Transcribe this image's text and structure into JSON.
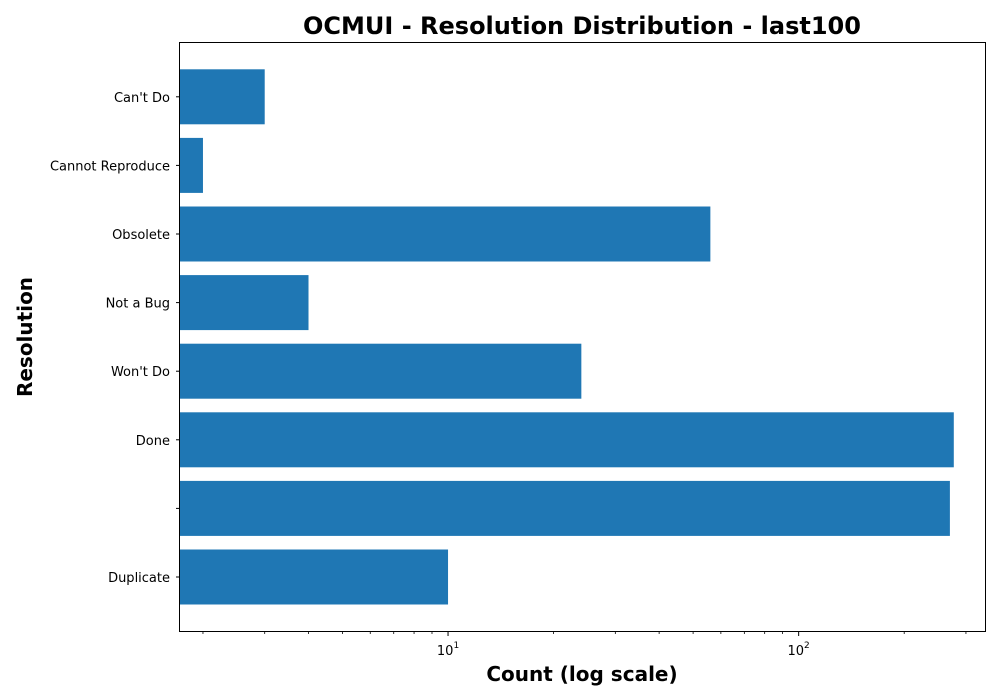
{
  "chart_data": {
    "type": "bar",
    "orientation": "horizontal",
    "title": "OCMUI - Resolution Distribution - last100",
    "xlabel": "Count (log scale)",
    "ylabel": "Resolution",
    "x_scale": "log",
    "xlim": [
      1.72,
      340
    ],
    "x_ticks": [
      {
        "value": 10,
        "base": "10",
        "exp": "1"
      },
      {
        "value": 100,
        "base": "10",
        "exp": "2"
      }
    ],
    "categories": [
      "Duplicate",
      "",
      "Done",
      "Won't Do",
      "Not a Bug",
      "Obsolete",
      "Cannot Reproduce",
      "Can't Do"
    ],
    "values": [
      10,
      270,
      277,
      24,
      4,
      56,
      2,
      3
    ],
    "bar_color": "#1f77b4",
    "grid": false,
    "legend": "none"
  }
}
